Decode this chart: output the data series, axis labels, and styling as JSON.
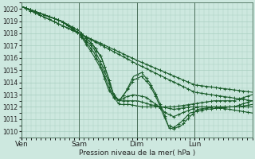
{
  "xlabel": "Pression niveau de la mer( hPa )",
  "background_color": "#cde8df",
  "grid_color": "#a8cfc0",
  "line_color": "#1a5c2a",
  "ylim": [
    1009.5,
    1020.5
  ],
  "yticks": [
    1010,
    1011,
    1012,
    1013,
    1014,
    1015,
    1016,
    1017,
    1018,
    1019,
    1020
  ],
  "day_labels": [
    "Ven",
    "Sam",
    "Dim",
    "Lun"
  ],
  "day_positions": [
    0,
    72,
    144,
    216
  ],
  "total_hours": 288,
  "series_defs": [
    [
      [
        0,
        1020.2
      ],
      [
        72,
        1018.0
      ],
      [
        144,
        1015.8
      ],
      [
        216,
        1013.8
      ],
      [
        288,
        1013.2
      ]
    ],
    [
      [
        0,
        1020.2
      ],
      [
        72,
        1018.0
      ],
      [
        144,
        1015.5
      ],
      [
        216,
        1013.2
      ],
      [
        288,
        1012.5
      ]
    ],
    [
      [
        0,
        1020.2
      ],
      [
        50,
        1019.0
      ],
      [
        72,
        1018.2
      ],
      [
        90,
        1017.0
      ],
      [
        100,
        1016.0
      ],
      [
        108,
        1014.5
      ],
      [
        115,
        1013.0
      ],
      [
        122,
        1012.5
      ],
      [
        130,
        1013.2
      ],
      [
        140,
        1014.5
      ],
      [
        150,
        1014.8
      ],
      [
        160,
        1014.0
      ],
      [
        168,
        1013.0
      ],
      [
        176,
        1011.8
      ],
      [
        184,
        1010.3
      ],
      [
        190,
        1010.2
      ],
      [
        200,
        1010.5
      ],
      [
        210,
        1011.2
      ],
      [
        220,
        1011.8
      ],
      [
        240,
        1012.0
      ],
      [
        260,
        1011.8
      ],
      [
        288,
        1011.5
      ]
    ],
    [
      [
        0,
        1020.2
      ],
      [
        50,
        1019.0
      ],
      [
        72,
        1018.2
      ],
      [
        90,
        1017.0
      ],
      [
        100,
        1016.0
      ],
      [
        108,
        1014.5
      ],
      [
        115,
        1013.0
      ],
      [
        122,
        1012.5
      ],
      [
        130,
        1013.2
      ],
      [
        140,
        1014.2
      ],
      [
        150,
        1014.5
      ],
      [
        160,
        1013.8
      ],
      [
        168,
        1012.8
      ],
      [
        176,
        1011.5
      ],
      [
        183,
        1010.5
      ],
      [
        190,
        1010.3
      ],
      [
        200,
        1010.8
      ],
      [
        210,
        1011.5
      ],
      [
        230,
        1011.8
      ],
      [
        260,
        1012.0
      ],
      [
        288,
        1012.0
      ]
    ],
    [
      [
        0,
        1020.2
      ],
      [
        50,
        1019.0
      ],
      [
        72,
        1018.0
      ],
      [
        90,
        1016.8
      ],
      [
        100,
        1015.5
      ],
      [
        108,
        1014.2
      ],
      [
        115,
        1013.0
      ],
      [
        122,
        1012.5
      ],
      [
        130,
        1012.8
      ],
      [
        140,
        1013.0
      ],
      [
        155,
        1012.8
      ],
      [
        168,
        1012.2
      ],
      [
        180,
        1011.5
      ],
      [
        190,
        1011.2
      ],
      [
        200,
        1011.5
      ],
      [
        220,
        1012.0
      ],
      [
        250,
        1012.0
      ],
      [
        270,
        1012.0
      ],
      [
        288,
        1012.2
      ]
    ],
    [
      [
        0,
        1020.2
      ],
      [
        50,
        1019.0
      ],
      [
        72,
        1018.0
      ],
      [
        90,
        1016.5
      ],
      [
        100,
        1015.2
      ],
      [
        108,
        1013.8
      ],
      [
        115,
        1012.8
      ],
      [
        122,
        1012.5
      ],
      [
        130,
        1012.5
      ],
      [
        145,
        1012.5
      ],
      [
        160,
        1012.2
      ],
      [
        175,
        1012.0
      ],
      [
        190,
        1011.8
      ],
      [
        210,
        1012.0
      ],
      [
        240,
        1012.0
      ],
      [
        265,
        1012.0
      ],
      [
        288,
        1012.5
      ]
    ],
    [
      [
        0,
        1020.2
      ],
      [
        50,
        1019.0
      ],
      [
        72,
        1018.0
      ],
      [
        90,
        1016.2
      ],
      [
        100,
        1015.0
      ],
      [
        108,
        1013.5
      ],
      [
        115,
        1012.8
      ],
      [
        122,
        1012.2
      ],
      [
        135,
        1012.2
      ],
      [
        150,
        1012.0
      ],
      [
        168,
        1012.0
      ],
      [
        190,
        1012.0
      ],
      [
        210,
        1012.2
      ],
      [
        240,
        1012.5
      ],
      [
        265,
        1012.5
      ],
      [
        288,
        1013.0
      ]
    ]
  ]
}
